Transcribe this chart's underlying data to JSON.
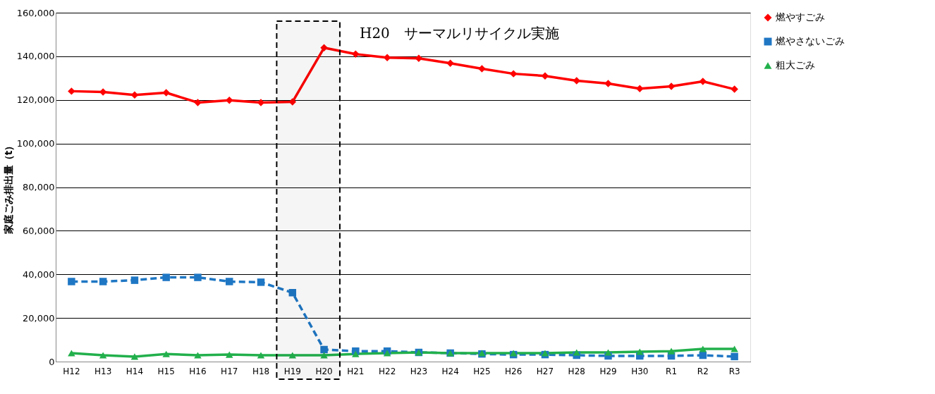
{
  "chart_data": {
    "type": "line",
    "ylabel": "家庭ごみ排出量（t）",
    "categories": [
      "H12",
      "H13",
      "H14",
      "H15",
      "H16",
      "H17",
      "H18",
      "H19",
      "H20",
      "H21",
      "H22",
      "H23",
      "H24",
      "H25",
      "H26",
      "H27",
      "H28",
      "H29",
      "H30",
      "R1",
      "R2",
      "R3"
    ],
    "series": [
      {
        "name": "燃やすごみ",
        "color": "#ff0000",
        "marker": "diamond",
        "line_style": "solid",
        "values": [
          124000,
          123600,
          122300,
          123300,
          118800,
          119800,
          118800,
          119100,
          143900,
          141000,
          139400,
          139100,
          136800,
          134300,
          132000,
          131000,
          128800,
          127500,
          125200,
          126200,
          128500,
          124900
        ]
      },
      {
        "name": "燃やさないごみ",
        "color": "#1f77c4",
        "marker": "square",
        "line_style": "dashed",
        "values": [
          36700,
          36700,
          37300,
          38600,
          38600,
          36700,
          36400,
          31600,
          5500,
          4800,
          4800,
          4200,
          3900,
          3500,
          3200,
          3200,
          2900,
          2600,
          2600,
          2600,
          2900,
          2300
        ]
      },
      {
        "name": "粗大ごみ",
        "color": "#22b04c",
        "marker": "triangle",
        "line_style": "solid",
        "values": [
          3900,
          2900,
          2300,
          3500,
          2900,
          3200,
          2900,
          2900,
          2900,
          3500,
          3900,
          4200,
          3900,
          3900,
          3900,
          3900,
          4200,
          4200,
          4500,
          4800,
          5800,
          5800
        ]
      }
    ],
    "ylim": [
      0,
      160000
    ],
    "yticks": [
      {
        "value": 0,
        "label": "0"
      },
      {
        "value": 20000,
        "label": "20,000"
      },
      {
        "value": 40000,
        "label": "40,000"
      },
      {
        "value": 60000,
        "label": "60,000"
      },
      {
        "value": 80000,
        "label": "80,000"
      },
      {
        "value": 100000,
        "label": "100,000"
      },
      {
        "value": 120000,
        "label": "120,000"
      },
      {
        "value": 140000,
        "label": "140,000"
      },
      {
        "value": 160000,
        "label": "160,000"
      }
    ],
    "grid": "y",
    "legend": "right",
    "bands": [
      {
        "axis": "x",
        "from": "H19",
        "to": "H20",
        "label": "H20　サーマルリサイクル実施",
        "color": "#000000"
      }
    ]
  }
}
